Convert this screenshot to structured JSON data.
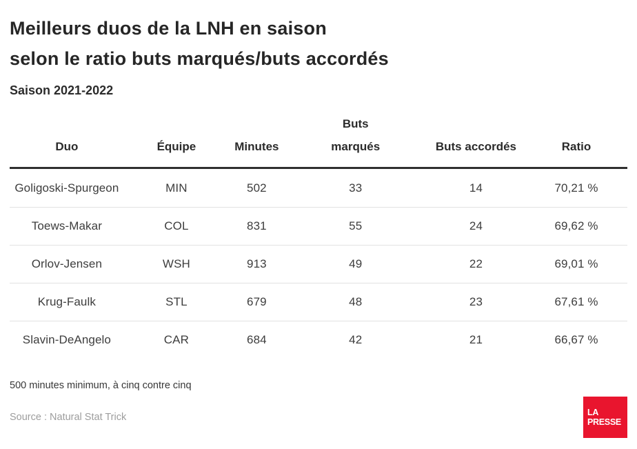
{
  "header": {
    "title": "Meilleurs duos de la LNH en saison\nselon le ratio buts marqués/buts accordés",
    "subtitle": "Saison 2021-2022"
  },
  "table": {
    "columns": [
      "Duo",
      "Équipe",
      "Minutes",
      "Buts\nmarqués",
      "Buts accordés",
      "Ratio"
    ],
    "rows": [
      [
        "Goligoski-Spurgeon",
        "MIN",
        "502",
        "33",
        "14",
        "70,21 %"
      ],
      [
        "Toews-Makar",
        "COL",
        "831",
        "55",
        "24",
        "69,62 %"
      ],
      [
        "Orlov-Jensen",
        "WSH",
        "913",
        "49",
        "22",
        "69,01 %"
      ],
      [
        "Krug-Faulk",
        "STL",
        "679",
        "48",
        "23",
        "67,61 %"
      ],
      [
        "Slavin-DeAngelo",
        "CAR",
        "684",
        "42",
        "21",
        "66,67 %"
      ]
    ]
  },
  "footnote": "500 minutes minimum, à cinq contre cinq",
  "source": "Source : Natural Stat Trick",
  "logo": {
    "line1": "LA",
    "line2": "PRESSE",
    "color": "#e9152e"
  },
  "colors": {
    "title_text": "#262626",
    "body_text": "#3d3d3d",
    "header_rule": "#2f2f2f",
    "row_separator": "#e2e2e2",
    "source_text": "#9d9d9d",
    "brand_red": "#e9152e",
    "background": "#ffffff"
  },
  "chart_data": {
    "type": "table",
    "title": "Meilleurs duos de la LNH en saison selon le ratio buts marqués/buts accordés",
    "subtitle": "Saison 2021-2022",
    "columns": [
      "Duo",
      "Équipe",
      "Minutes",
      "Buts marqués",
      "Buts accordés",
      "Ratio"
    ],
    "rows": [
      [
        "Goligoski-Spurgeon",
        "MIN",
        502,
        33,
        14,
        "70,21 %"
      ],
      [
        "Toews-Makar",
        "COL",
        831,
        55,
        24,
        "69,62 %"
      ],
      [
        "Orlov-Jensen",
        "WSH",
        913,
        49,
        22,
        "69,01 %"
      ],
      [
        "Krug-Faulk",
        "STL",
        679,
        48,
        23,
        "67,61 %"
      ],
      [
        "Slavin-DeAngelo",
        "CAR",
        684,
        42,
        21,
        "66,67 %"
      ]
    ],
    "ratio_values_percent": [
      70.21,
      69.62,
      69.01,
      67.61,
      66.67
    ],
    "footnote": "500 minutes minimum, à cinq contre cinq",
    "source": "Natural Stat Trick"
  }
}
